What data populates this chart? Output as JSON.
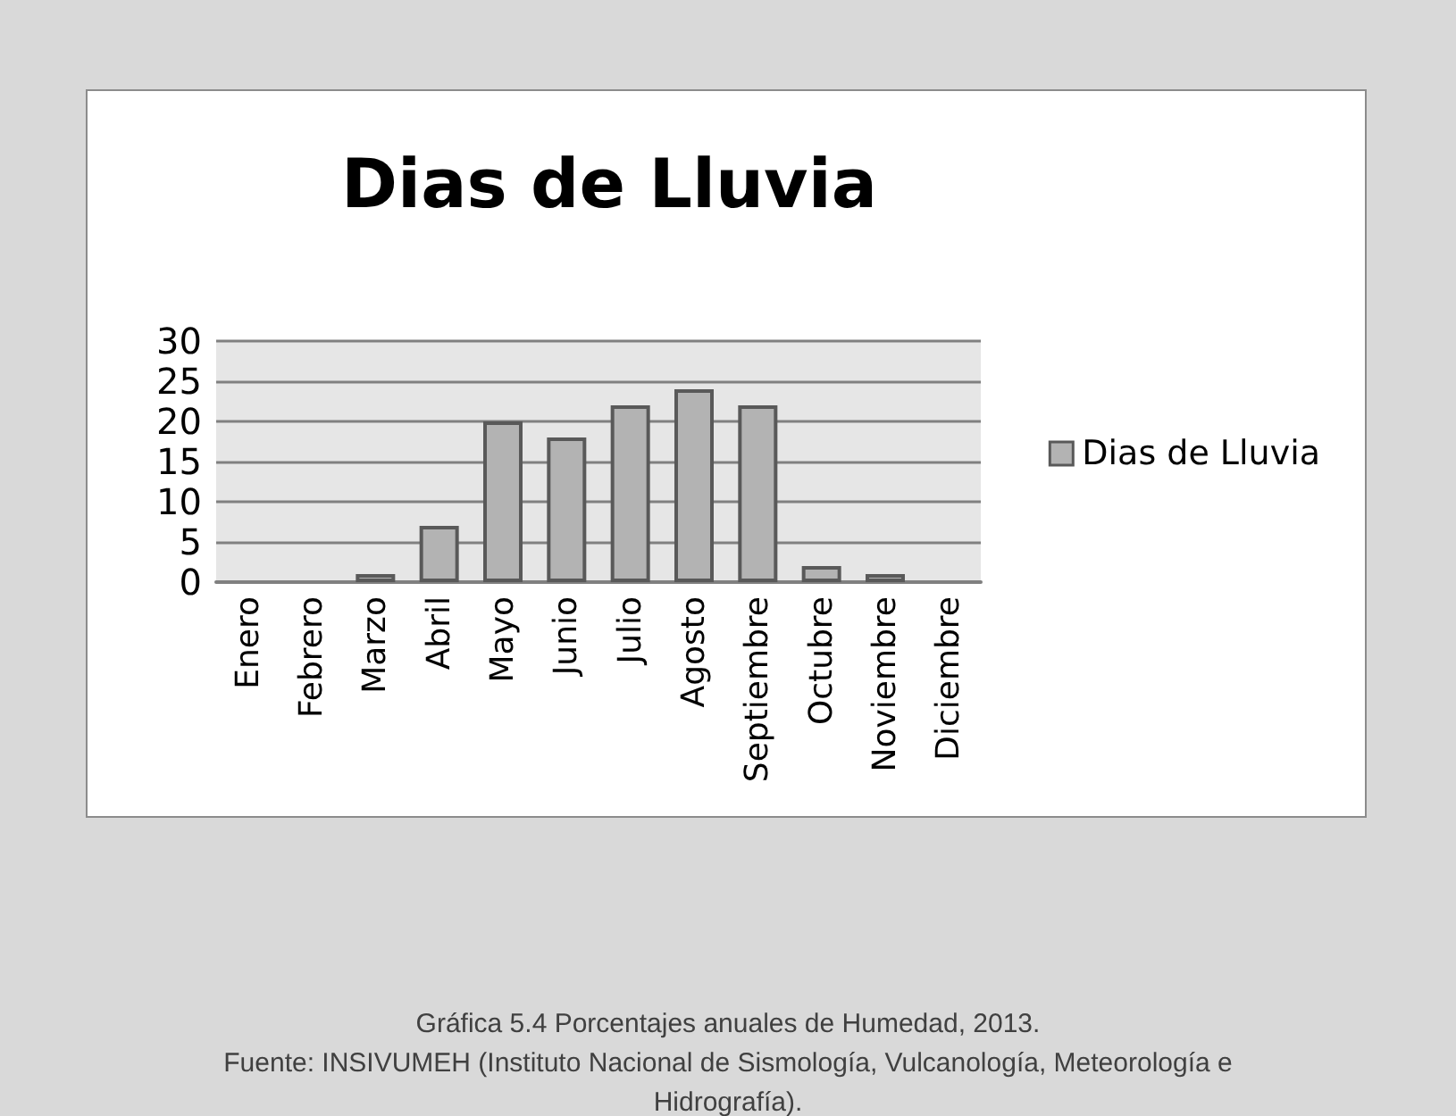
{
  "chart_data": {
    "type": "bar",
    "title": "Dias de Lluvia",
    "categories": [
      "Enero",
      "Febrero",
      "Marzo",
      "Abril",
      "Mayo",
      "Junio",
      "Julio",
      "Agosto",
      "Septiembre",
      "Octubre",
      "Noviembre",
      "Diciembre"
    ],
    "series": [
      {
        "name": "Dias de Lluvia",
        "color": "#b3b3b3",
        "values": [
          0,
          0,
          1,
          7,
          20,
          18,
          22,
          24,
          22,
          2,
          1,
          0
        ]
      }
    ],
    "ylim": [
      0,
      30
    ],
    "yticks": [
      0,
      5,
      10,
      15,
      20,
      25,
      30
    ],
    "grid": "y",
    "legend": "right",
    "annotations": [
      "Gráfica 5.4 Porcentajes anuales de Humedad, 2013.",
      "Fuente: INSIVUMEH (Instituto Nacional de Sismología, Vulcanología, Meteorología e Hidrografía)."
    ]
  }
}
